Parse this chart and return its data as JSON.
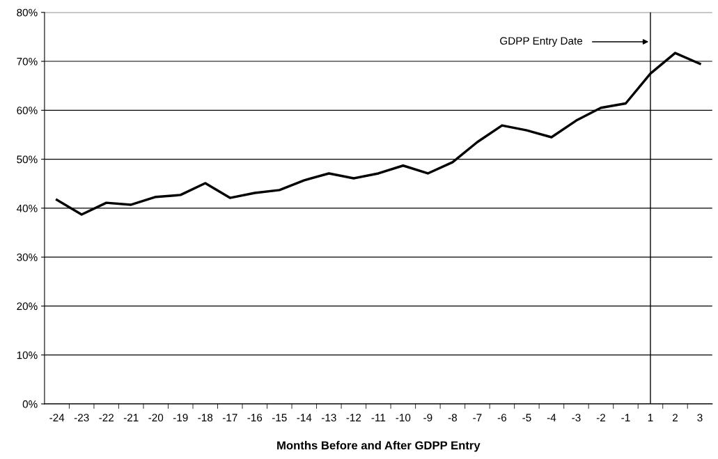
{
  "chart_data": {
    "type": "line",
    "xlabel": "Months Before and After GDPP Entry",
    "categories": [
      "-24",
      "-23",
      "-22",
      "-21",
      "-20",
      "-19",
      "-18",
      "-17",
      "-16",
      "-15",
      "-14",
      "-13",
      "-12",
      "-11",
      "-10",
      "-9",
      "-8",
      "-7",
      "-6",
      "-5",
      "-4",
      "-3",
      "-2",
      "-1",
      "1",
      "2",
      "3"
    ],
    "series": [
      {
        "color": "#000000",
        "values": [
          41.7,
          38.7,
          41.1,
          40.7,
          42.3,
          42.7,
          45.1,
          42.1,
          43.1,
          43.7,
          45.7,
          47.1,
          46.1,
          47.1,
          48.7,
          47.1,
          49.4,
          53.5,
          56.9,
          55.9,
          54.5,
          57.9,
          60.5,
          61.4,
          67.5,
          71.7,
          69.5
        ]
      }
    ],
    "ylim": [
      0,
      80
    ],
    "yticks": [
      {
        "value": 0,
        "label": "0%"
      },
      {
        "value": 10,
        "label": "10%"
      },
      {
        "value": 20,
        "label": "20%"
      },
      {
        "value": 30,
        "label": "30%"
      },
      {
        "value": 40,
        "label": "40%"
      },
      {
        "value": 50,
        "label": "50%"
      },
      {
        "value": 60,
        "label": "60%"
      },
      {
        "value": 70,
        "label": "70%"
      },
      {
        "value": 80,
        "label": "80%"
      }
    ],
    "grid": "y",
    "marker": "none",
    "line_style": "solid",
    "ref_lines": [
      {
        "axis": "x",
        "value": "1",
        "color": "#000000"
      }
    ],
    "annotations": [
      {
        "text": "GDPP Entry Date",
        "x": "1",
        "y": 74
      }
    ]
  }
}
